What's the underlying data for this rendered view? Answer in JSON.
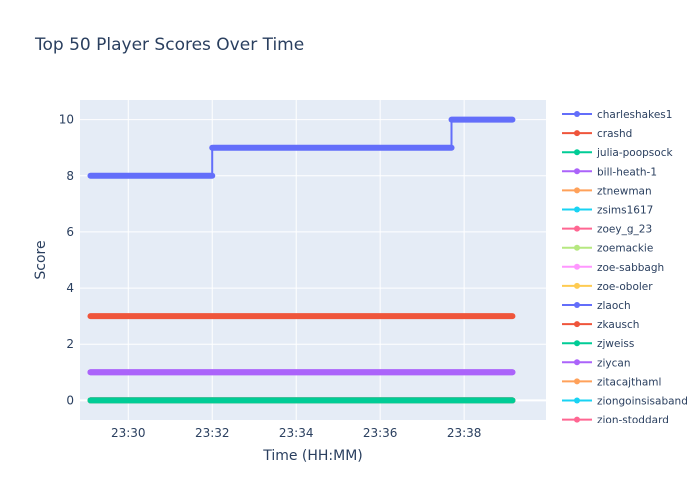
{
  "chart_data": {
    "type": "line",
    "title": "Top 50 Player Scores Over Time",
    "xlabel": "Time (HH:MM)",
    "ylabel": "Score",
    "x_tick_labels": [
      "23:30",
      "23:32",
      "23:34",
      "23:36",
      "23:38"
    ],
    "x_tick_minutes": [
      1410,
      1412,
      1414,
      1416,
      1418
    ],
    "xlim_minutes": [
      1408.85,
      1419.95
    ],
    "ylim": [
      -0.7,
      10.7
    ],
    "y_ticks": [
      0,
      2,
      4,
      6,
      8,
      10
    ],
    "grid": true,
    "legend_position": "right",
    "plot_background": "#e5ecf6",
    "series": [
      {
        "name": "charleshakes1",
        "color": "#636efa",
        "x": [
          1409.1,
          1412.0,
          1412.0,
          1417.7,
          1417.7,
          1419.15
        ],
        "y": [
          8,
          8,
          9,
          9,
          10,
          10
        ]
      },
      {
        "name": "crashd",
        "color": "#EF553B",
        "x": [
          1409.1,
          1419.15
        ],
        "y": [
          3,
          3
        ]
      },
      {
        "name": "julia-poopsock",
        "color": "#00cc96",
        "x": [
          1409.1,
          1419.15
        ],
        "y": [
          0,
          0
        ]
      },
      {
        "name": "bill-heath-1",
        "color": "#ab63fa",
        "x": [
          1409.1,
          1419.15
        ],
        "y": [
          1,
          1
        ]
      },
      {
        "name": "ztnewman",
        "color": "#FFA15A",
        "x": [
          1409.1,
          1419.15
        ],
        "y": [
          0,
          0
        ]
      },
      {
        "name": "zsims1617",
        "color": "#19d3f3",
        "x": [
          1409.1,
          1419.15
        ],
        "y": [
          0,
          0
        ]
      },
      {
        "name": "zoey_g_23",
        "color": "#FF6692",
        "x": [
          1409.1,
          1419.15
        ],
        "y": [
          0,
          0
        ]
      },
      {
        "name": "zoemackie",
        "color": "#B6E880",
        "x": [
          1409.1,
          1419.15
        ],
        "y": [
          0,
          0
        ]
      },
      {
        "name": "zoe-sabbagh",
        "color": "#FF97FF",
        "x": [
          1409.1,
          1419.15
        ],
        "y": [
          0,
          0
        ]
      },
      {
        "name": "zoe-oboler",
        "color": "#FECB52",
        "x": [
          1409.1,
          1419.15
        ],
        "y": [
          0,
          0
        ]
      },
      {
        "name": "zlaoch",
        "color": "#636efa",
        "x": [
          1409.1,
          1419.15
        ],
        "y": [
          0,
          0
        ]
      },
      {
        "name": "zkausch",
        "color": "#EF553B",
        "x": [
          1409.1,
          1419.15
        ],
        "y": [
          0,
          0
        ]
      },
      {
        "name": "zjweiss",
        "color": "#00cc96",
        "x": [
          1409.1,
          1419.15
        ],
        "y": [
          0,
          0
        ]
      },
      {
        "name": "ziycan",
        "color": "#ab63fa",
        "x": [
          1409.1,
          1419.15
        ],
        "y": [
          1,
          1
        ]
      },
      {
        "name": "zitacajthaml",
        "color": "#FFA15A",
        "x": [
          1409.1,
          1419.15
        ],
        "y": [
          0,
          0
        ]
      },
      {
        "name": "ziongoinsisaband",
        "color": "#19d3f3",
        "x": [
          1409.1,
          1419.15
        ],
        "y": [
          0,
          0
        ]
      },
      {
        "name": "zion-stoddard",
        "color": "#FF6692",
        "x": [
          1409.1,
          1419.15
        ],
        "y": [
          0,
          0
        ]
      }
    ]
  }
}
